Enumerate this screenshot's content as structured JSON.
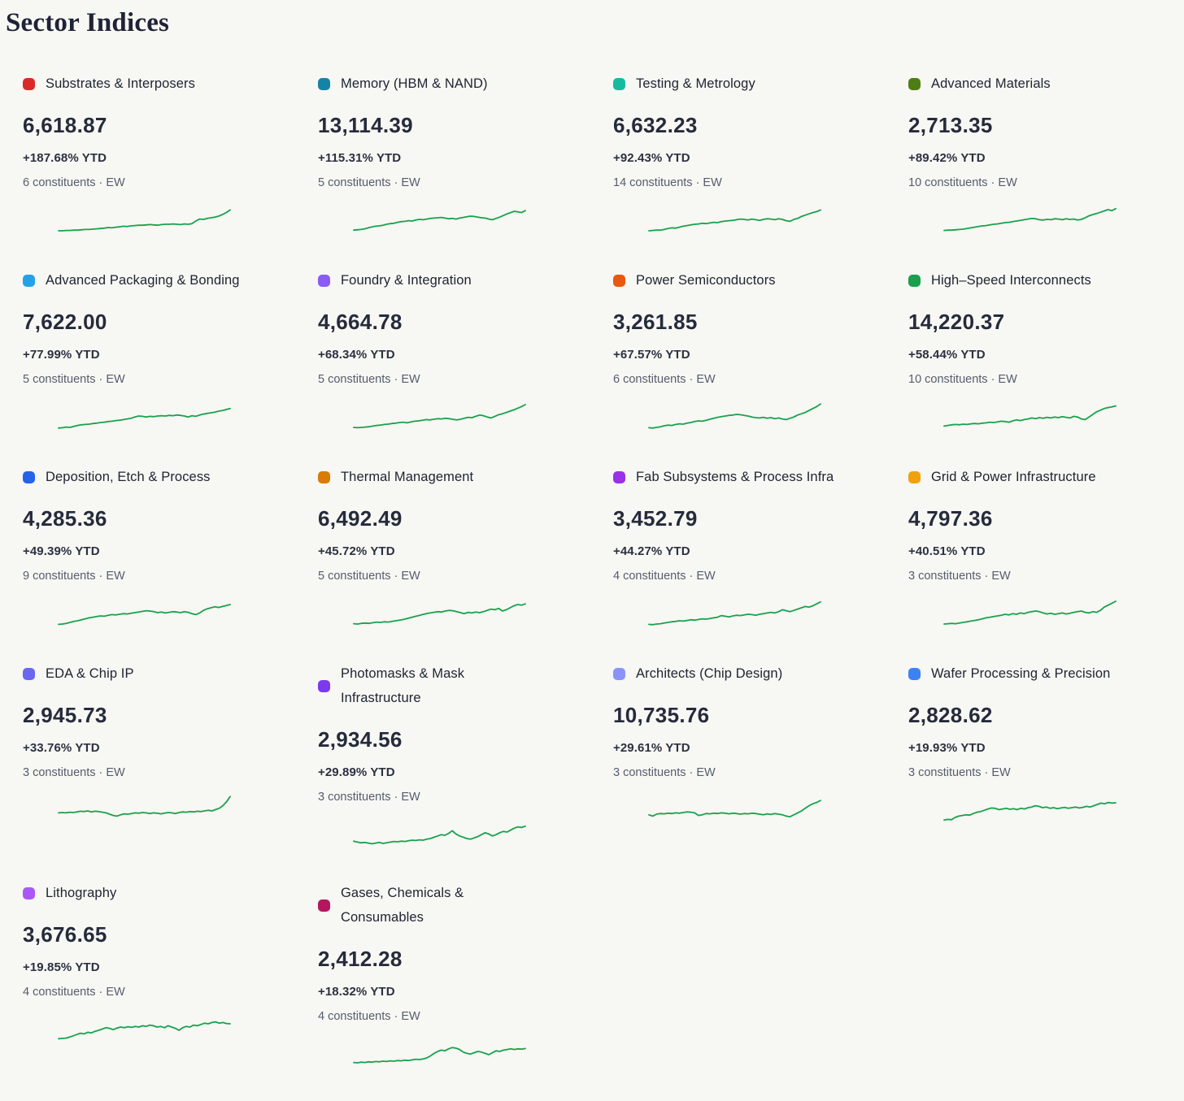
{
  "page": {
    "title": "Sector Indices",
    "background_color": "#f7f7f4",
    "sparkline_color": "#18a24b"
  },
  "cards": [
    {
      "name_lines": [
        "Substrates & Interposers"
      ],
      "dot_color": "#da2a28",
      "value": "6,618.87",
      "change": "+187.68% YTD",
      "constituents": "6 constituents · EW",
      "sparkline": [
        10,
        10,
        11,
        11,
        12,
        12,
        13,
        14,
        14,
        15,
        16,
        17,
        18,
        20,
        19,
        21,
        22,
        24,
        23,
        25,
        26,
        27,
        27,
        28,
        29,
        28,
        27,
        29,
        30,
        30,
        31,
        30,
        29,
        31,
        30,
        32,
        40,
        46,
        45,
        48,
        50,
        52,
        55,
        60,
        66,
        74
      ]
    },
    {
      "name_lines": [
        "Memory (HBM & NAND)"
      ],
      "dot_color": "#1583a6",
      "value": "13,114.39",
      "change": "+115.31% YTD",
      "constituents": "5 constituents · EW",
      "sparkline": [
        12,
        13,
        14,
        16,
        19,
        22,
        24,
        25,
        27,
        30,
        32,
        33,
        36,
        38,
        39,
        41,
        40,
        43,
        45,
        44,
        46,
        48,
        49,
        50,
        51,
        49,
        47,
        48,
        46,
        49,
        51,
        53,
        55,
        54,
        52,
        50,
        49,
        46,
        44,
        48,
        52,
        57,
        62,
        66,
        70,
        68,
        66,
        72
      ]
    },
    {
      "name_lines": [
        "Testing & Metrology"
      ],
      "dot_color": "#16bb9f",
      "value": "6,632.23",
      "change": "+92.43% YTD",
      "constituents": "14 constituents · EW",
      "sparkline": [
        10,
        11,
        12,
        12,
        14,
        17,
        19,
        18,
        21,
        24,
        26,
        28,
        30,
        31,
        33,
        32,
        34,
        36,
        35,
        38,
        40,
        41,
        42,
        44,
        46,
        45,
        43,
        46,
        44,
        42,
        45,
        47,
        46,
        44,
        47,
        45,
        41,
        39,
        45,
        48,
        54,
        58,
        62,
        66,
        69,
        74
      ]
    },
    {
      "name_lines": [
        "Advanced Materials"
      ],
      "dot_color": "#4e7e13",
      "value": "2,713.35",
      "change": "+89.42% YTD",
      "constituents": "10 constituents · EW",
      "sparkline": [
        11,
        12,
        12,
        13,
        14,
        15,
        17,
        19,
        21,
        23,
        25,
        26,
        28,
        30,
        31,
        33,
        35,
        36,
        38,
        40,
        42,
        44,
        46,
        48,
        47,
        44,
        43,
        45,
        44,
        47,
        46,
        44,
        47,
        45,
        46,
        43,
        45,
        50,
        56,
        60,
        63,
        67,
        71,
        75,
        72,
        78
      ]
    },
    {
      "name_lines": [
        "Advanced Packaging & Bonding"
      ],
      "dot_color": "#23a2ec",
      "value": "7,622.00",
      "change": "+77.99% YTD",
      "constituents": "5 constituents · EW",
      "sparkline": [
        8,
        9,
        11,
        10,
        13,
        16,
        18,
        19,
        20,
        22,
        23,
        25,
        26,
        28,
        29,
        31,
        32,
        34,
        36,
        38,
        42,
        45,
        44,
        42,
        44,
        43,
        45,
        46,
        45,
        47,
        46,
        48,
        47,
        45,
        42,
        46,
        44,
        48,
        51,
        53,
        55,
        57,
        60,
        62,
        65,
        68
      ]
    },
    {
      "name_lines": [
        "Foundry & Integration"
      ],
      "dot_color": "#8a5bf6",
      "value": "4,664.78",
      "change": "+68.34% YTD",
      "constituents": "5 constituents · EW",
      "sparkline": [
        10,
        9,
        10,
        11,
        12,
        14,
        16,
        17,
        19,
        20,
        22,
        23,
        25,
        26,
        24,
        27,
        29,
        30,
        32,
        34,
        33,
        35,
        37,
        36,
        38,
        37,
        35,
        33,
        35,
        38,
        41,
        40,
        44,
        48,
        46,
        42,
        39,
        44,
        49,
        52,
        56,
        60,
        64,
        69,
        74,
        80
      ]
    },
    {
      "name_lines": [
        "Power Semiconductors"
      ],
      "dot_color": "#e8590c",
      "value": "3,261.85",
      "change": "+67.57% YTD",
      "constituents": "6 constituents · EW",
      "sparkline": [
        9,
        8,
        10,
        12,
        15,
        17,
        16,
        19,
        21,
        20,
        23,
        25,
        28,
        30,
        29,
        32,
        35,
        38,
        41,
        43,
        45,
        47,
        48,
        50,
        49,
        47,
        45,
        42,
        40,
        39,
        41,
        38,
        40,
        37,
        39,
        36,
        34,
        38,
        42,
        48,
        52,
        56,
        62,
        68,
        74,
        82
      ]
    },
    {
      "name_lines": [
        "High–Speed Interconnects"
      ],
      "dot_color": "#18a04c",
      "value": "14,220.37",
      "change": "+58.44% YTD",
      "constituents": "10 constituents · EW",
      "sparkline": [
        14,
        16,
        18,
        19,
        18,
        20,
        19,
        21,
        22,
        21,
        23,
        24,
        26,
        25,
        27,
        29,
        28,
        26,
        30,
        33,
        31,
        34,
        36,
        39,
        37,
        40,
        38,
        41,
        39,
        42,
        40,
        43,
        41,
        39,
        44,
        42,
        36,
        34,
        42,
        50,
        58,
        63,
        68,
        71,
        73,
        76
      ]
    },
    {
      "name_lines": [
        "Deposition, Etch & Process"
      ],
      "dot_color": "#2563eb",
      "value": "4,285.36",
      "change": "+49.39% YTD",
      "constituents": "9 constituents · EW",
      "sparkline": [
        9,
        10,
        12,
        15,
        18,
        20,
        23,
        26,
        29,
        31,
        33,
        35,
        34,
        37,
        39,
        38,
        40,
        42,
        41,
        43,
        45,
        47,
        49,
        51,
        50,
        48,
        45,
        47,
        44,
        46,
        48,
        47,
        45,
        48,
        46,
        42,
        39,
        44,
        52,
        57,
        60,
        63,
        61,
        64,
        67,
        70
      ]
    },
    {
      "name_lines": [
        "Thermal Management"
      ],
      "dot_color": "#d97b06",
      "value": "6,492.49",
      "change": "+45.72% YTD",
      "constituents": "5 constituents · EW",
      "sparkline": [
        11,
        10,
        12,
        13,
        12,
        14,
        16,
        15,
        17,
        16,
        18,
        20,
        22,
        24,
        27,
        30,
        33,
        36,
        39,
        42,
        44,
        46,
        48,
        47,
        50,
        52,
        51,
        48,
        45,
        42,
        46,
        44,
        47,
        45,
        48,
        52,
        56,
        54,
        58,
        50,
        54,
        60,
        66,
        70,
        68,
        72
      ]
    },
    {
      "name_lines": [
        "Fab Subsystems & Process Infra"
      ],
      "dot_color": "#9a30ea",
      "value": "3,452.79",
      "change": "+44.27% YTD",
      "constituents": "4 constituents · EW",
      "sparkline": [
        9,
        8,
        10,
        11,
        13,
        15,
        17,
        18,
        20,
        19,
        21,
        23,
        22,
        24,
        26,
        25,
        27,
        29,
        31,
        36,
        34,
        32,
        35,
        37,
        36,
        38,
        40,
        39,
        37,
        40,
        42,
        44,
        46,
        44,
        48,
        54,
        51,
        48,
        52,
        56,
        60,
        64,
        62,
        66,
        72,
        78
      ]
    },
    {
      "name_lines": [
        "Grid & Power Infrastructure"
      ],
      "dot_color": "#f0a10c",
      "value": "4,797.36",
      "change": "+40.51% YTD",
      "constituents": "3 constituents · EW",
      "sparkline": [
        10,
        11,
        12,
        11,
        13,
        15,
        17,
        19,
        21,
        23,
        26,
        29,
        31,
        33,
        35,
        37,
        40,
        38,
        42,
        40,
        44,
        42,
        46,
        48,
        50,
        48,
        44,
        41,
        43,
        40,
        42,
        44,
        41,
        43,
        46,
        48,
        50,
        46,
        44,
        48,
        46,
        52,
        62,
        68,
        74,
        80
      ]
    },
    {
      "name_lines": [
        "EDA & Chip IP"
      ],
      "dot_color": "#6a67f2",
      "value": "2,945.73",
      "change": "+33.76% YTD",
      "constituents": "3 constituents · EW",
      "sparkline": [
        34,
        35,
        34,
        36,
        35,
        37,
        39,
        38,
        40,
        37,
        39,
        38,
        36,
        34,
        30,
        26,
        24,
        28,
        31,
        30,
        32,
        34,
        33,
        35,
        34,
        32,
        34,
        33,
        31,
        33,
        35,
        34,
        32,
        35,
        37,
        36,
        38,
        37,
        39,
        38,
        40,
        42,
        40,
        44,
        48,
        56,
        68,
        84
      ]
    },
    {
      "name_lines": [
        "Photomasks & Mask",
        "Infrastructure"
      ],
      "dot_color": "#7c3aed",
      "value": "2,934.56",
      "change": "+29.89% YTD",
      "constituents": "3 constituents · EW",
      "sparkline": [
        22,
        19,
        17,
        18,
        16,
        14,
        16,
        18,
        15,
        17,
        19,
        21,
        20,
        22,
        21,
        23,
        25,
        24,
        26,
        25,
        28,
        30,
        34,
        38,
        42,
        40,
        46,
        54,
        44,
        38,
        34,
        30,
        28,
        32,
        36,
        42,
        48,
        44,
        38,
        42,
        48,
        52,
        50,
        56,
        62,
        66,
        64,
        68
      ]
    },
    {
      "name_lines": [
        "Architects (Chip Design)"
      ],
      "dot_color": "#8b93f8",
      "value": "10,735.76",
      "change": "+29.61% YTD",
      "constituents": "3 constituents · EW",
      "sparkline": [
        28,
        24,
        30,
        32,
        31,
        33,
        32,
        34,
        33,
        35,
        37,
        36,
        34,
        26,
        28,
        32,
        31,
        33,
        32,
        34,
        33,
        31,
        33,
        32,
        30,
        32,
        31,
        33,
        32,
        30,
        28,
        31,
        29,
        32,
        30,
        28,
        24,
        22,
        28,
        34,
        40,
        48,
        56,
        62,
        66,
        72
      ]
    },
    {
      "name_lines": [
        "Wafer Processing & Precision"
      ],
      "dot_color": "#3b82f6",
      "value": "2,828.62",
      "change": "+19.93% YTD",
      "constituents": "3 constituents · EW",
      "sparkline": [
        12,
        14,
        13,
        20,
        24,
        26,
        28,
        27,
        32,
        36,
        38,
        42,
        46,
        49,
        48,
        44,
        46,
        48,
        45,
        47,
        44,
        48,
        46,
        50,
        52,
        56,
        54,
        50,
        52,
        48,
        50,
        47,
        49,
        51,
        48,
        50,
        52,
        49,
        51,
        54,
        52,
        56,
        60,
        64,
        62,
        66,
        64,
        65
      ]
    },
    {
      "name_lines": [
        "Lithography"
      ],
      "dot_color": "#a958f7",
      "value": "3,676.65",
      "change": "+19.85% YTD",
      "constituents": "4 constituents · EW",
      "sparkline": [
        14,
        15,
        16,
        19,
        23,
        27,
        31,
        29,
        34,
        32,
        37,
        40,
        44,
        48,
        46,
        42,
        47,
        50,
        48,
        51,
        49,
        52,
        50,
        54,
        52,
        56,
        54,
        50,
        52,
        48,
        54,
        50,
        46,
        40,
        48,
        52,
        50,
        56,
        54,
        58,
        62,
        60,
        64,
        66,
        62,
        64,
        61,
        60
      ]
    },
    {
      "name_lines": [
        "Gases, Chemicals &",
        "Consumables"
      ],
      "dot_color": "#b5175e",
      "value": "2,412.28",
      "change": "+18.32% YTD",
      "constituents": "4 constituents · EW",
      "sparkline": [
        16,
        15,
        17,
        16,
        18,
        17,
        19,
        18,
        20,
        19,
        21,
        20,
        22,
        21,
        23,
        22,
        24,
        26,
        25,
        27,
        30,
        36,
        44,
        50,
        54,
        52,
        58,
        62,
        60,
        56,
        48,
        44,
        42,
        46,
        50,
        48,
        44,
        40,
        46,
        52,
        50,
        54,
        56,
        58,
        56,
        58,
        57,
        59
      ]
    }
  ]
}
